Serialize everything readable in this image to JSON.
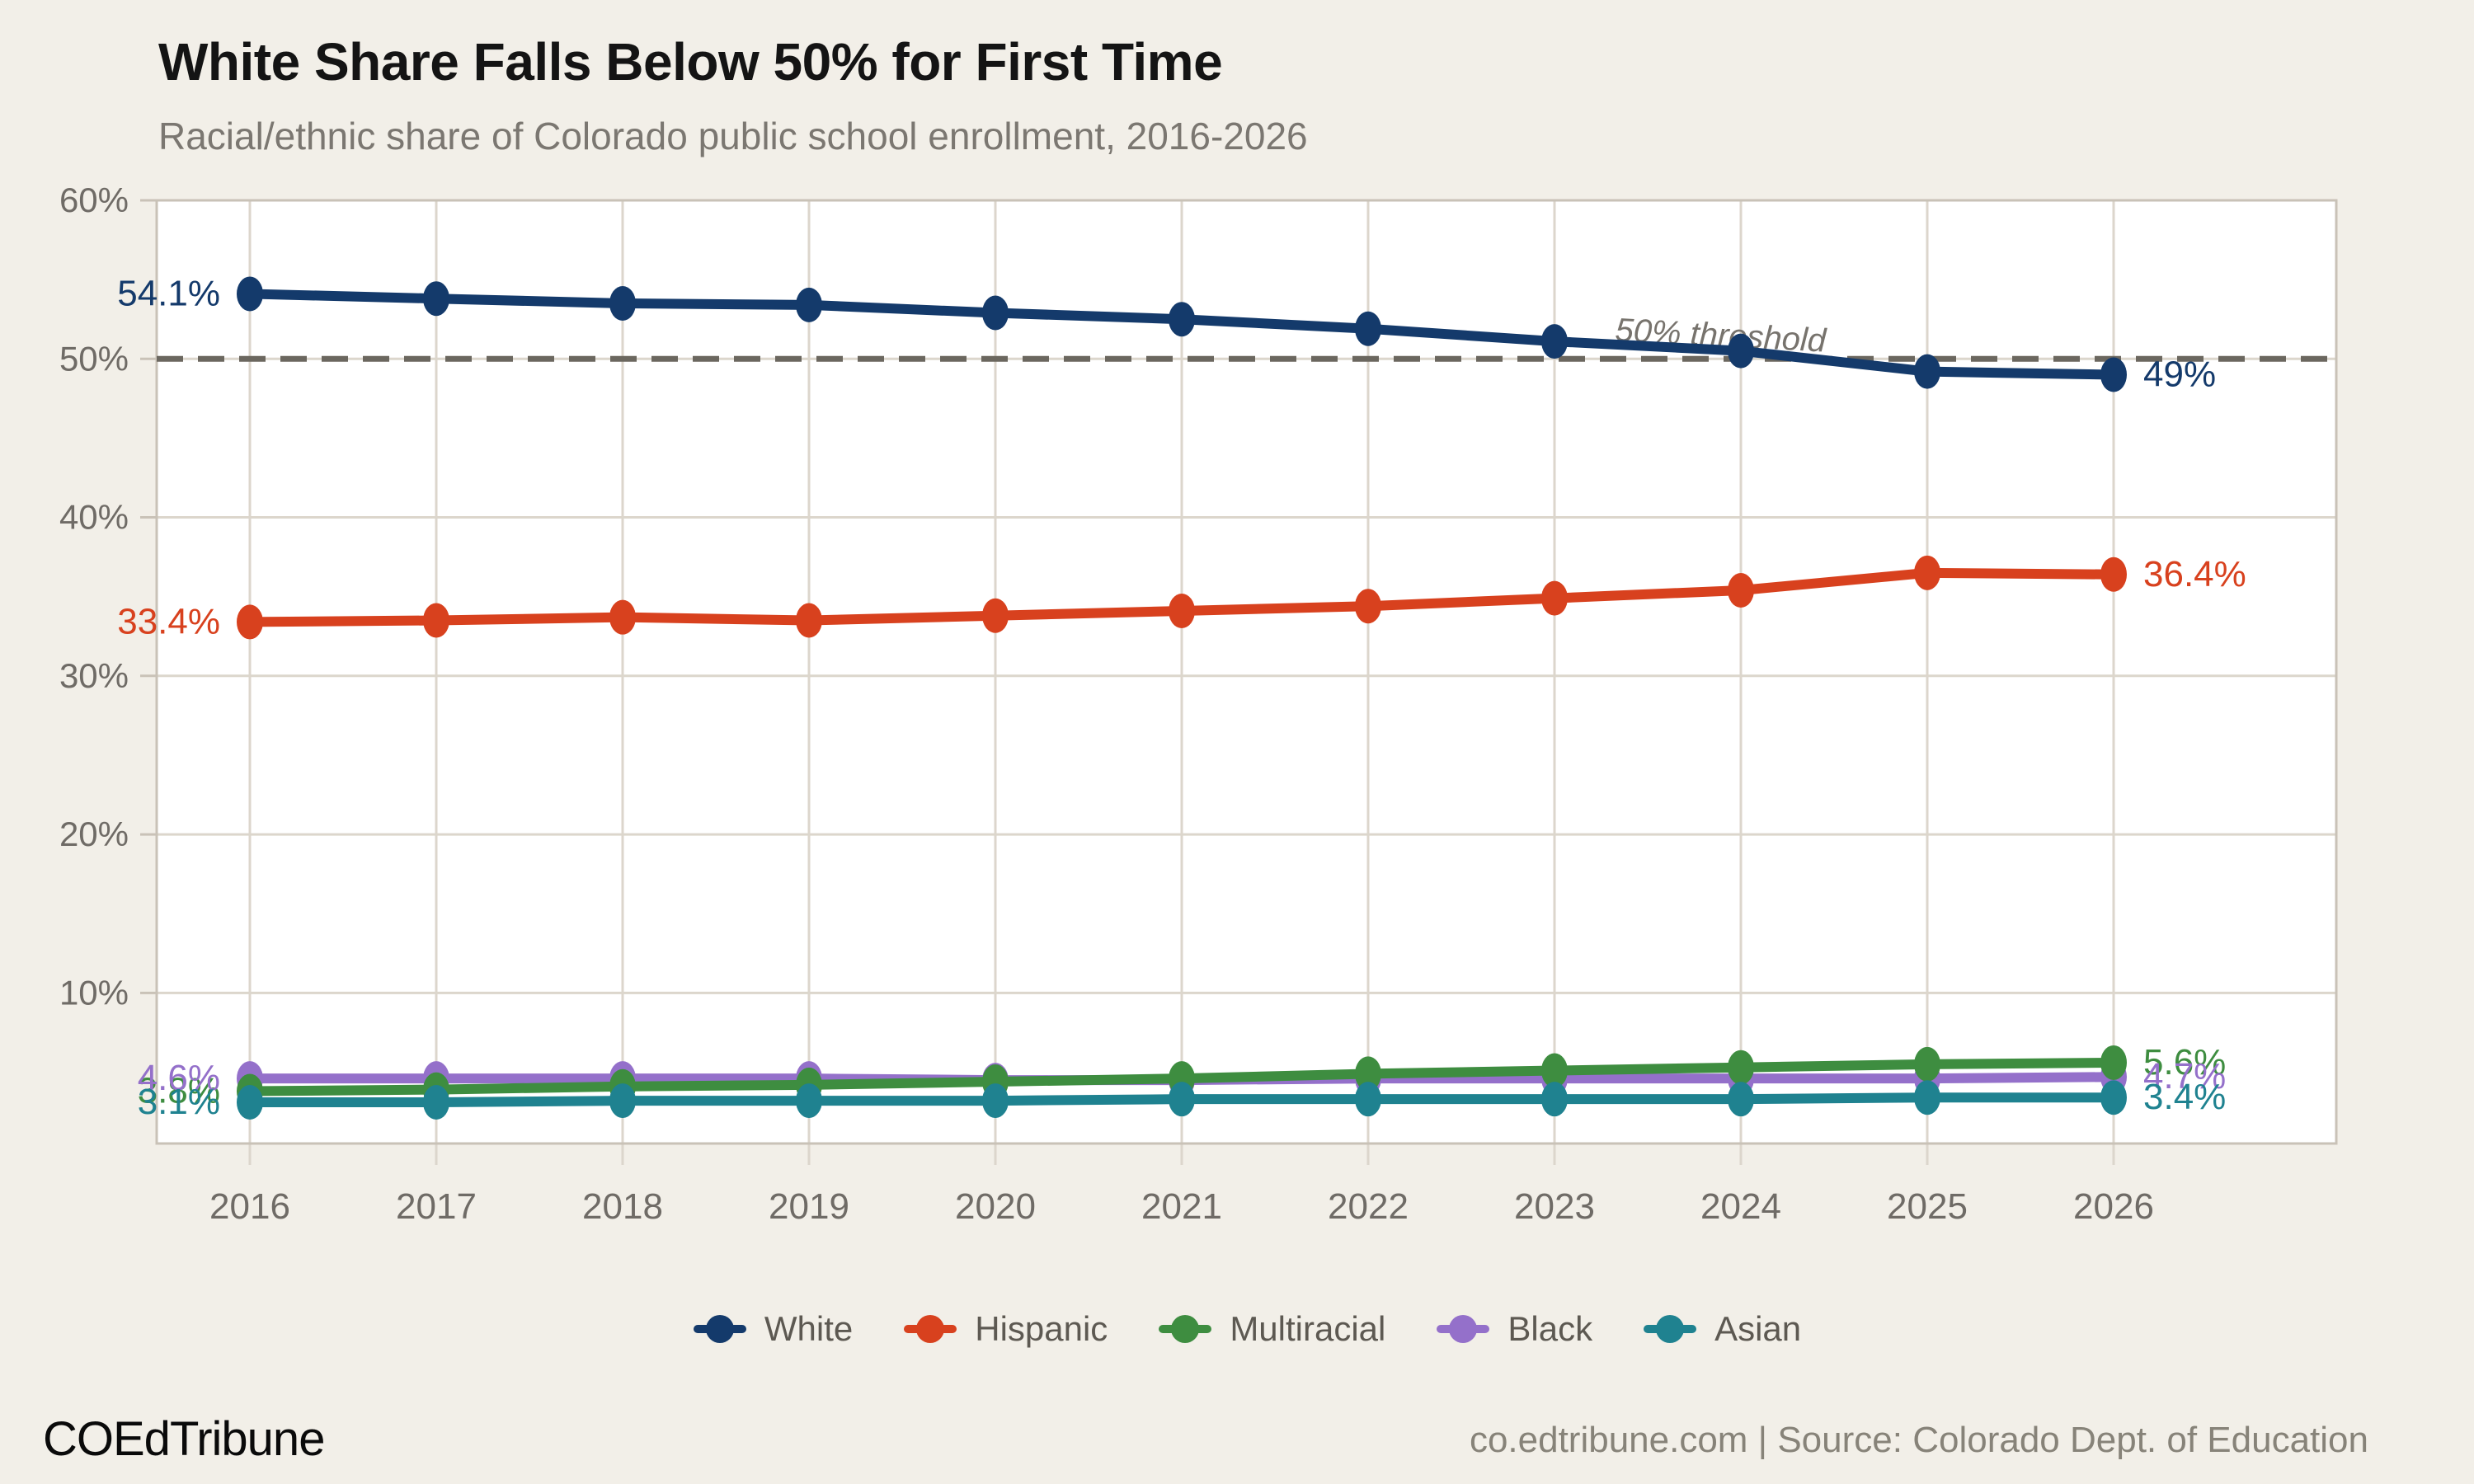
{
  "header": {
    "title": "White Share Falls Below 50% for First Time",
    "subtitle": "Racial/ethnic share of Colorado public school enrollment, 2016-2026"
  },
  "chart_data": {
    "type": "line",
    "x": [
      2016,
      2017,
      2018,
      2019,
      2020,
      2021,
      2022,
      2023,
      2024,
      2025,
      2026
    ],
    "y_ticks": [
      10,
      20,
      30,
      40,
      50,
      60
    ],
    "y_tick_suffix": "%",
    "ylim": [
      0.5,
      60
    ],
    "grid": true,
    "legend_position": "bottom",
    "threshold": {
      "value": 50,
      "label": "50% threshold"
    },
    "series": [
      {
        "name": "White",
        "color": "#143a6b",
        "values": [
          54.1,
          53.8,
          53.5,
          53.4,
          52.9,
          52.5,
          51.9,
          51.1,
          50.5,
          49.2,
          49.0
        ],
        "start_label": "54.1%",
        "end_label": "49%",
        "draw_order": 0
      },
      {
        "name": "Hispanic",
        "color": "#d8411e",
        "values": [
          33.4,
          33.5,
          33.7,
          33.5,
          33.8,
          34.1,
          34.4,
          34.9,
          35.4,
          36.5,
          36.4
        ],
        "start_label": "33.4%",
        "end_label": "36.4%",
        "draw_order": 1
      },
      {
        "name": "Multiracial",
        "color": "#3e8d40",
        "values": [
          3.8,
          3.9,
          4.1,
          4.2,
          4.4,
          4.6,
          4.9,
          5.1,
          5.3,
          5.5,
          5.6
        ],
        "start_label": "3.8%",
        "end_label": "5.6%",
        "draw_order": 3
      },
      {
        "name": "Black",
        "color": "#9470ca",
        "values": [
          4.6,
          4.6,
          4.6,
          4.6,
          4.5,
          4.5,
          4.6,
          4.6,
          4.6,
          4.6,
          4.7
        ],
        "start_label": "4.6%",
        "end_label": "4.7%",
        "draw_order": 2
      },
      {
        "name": "Asian",
        "color": "#1f8290",
        "values": [
          3.1,
          3.1,
          3.2,
          3.2,
          3.2,
          3.3,
          3.3,
          3.3,
          3.3,
          3.4,
          3.4
        ],
        "start_label": "3.1%",
        "end_label": "3.4%",
        "draw_order": 4
      }
    ]
  },
  "colors": {
    "background": "#f2efe8",
    "plot_background": "#ffffff",
    "gridline": "#dcd6cc",
    "axis_border": "#c9c2b7",
    "tick_text": "#6f6b66",
    "threshold_line": "#6b675f"
  },
  "footer": {
    "brand": "COEdTribune",
    "attribution": "co.edtribune.com | Source: Colorado Dept. of Education"
  }
}
